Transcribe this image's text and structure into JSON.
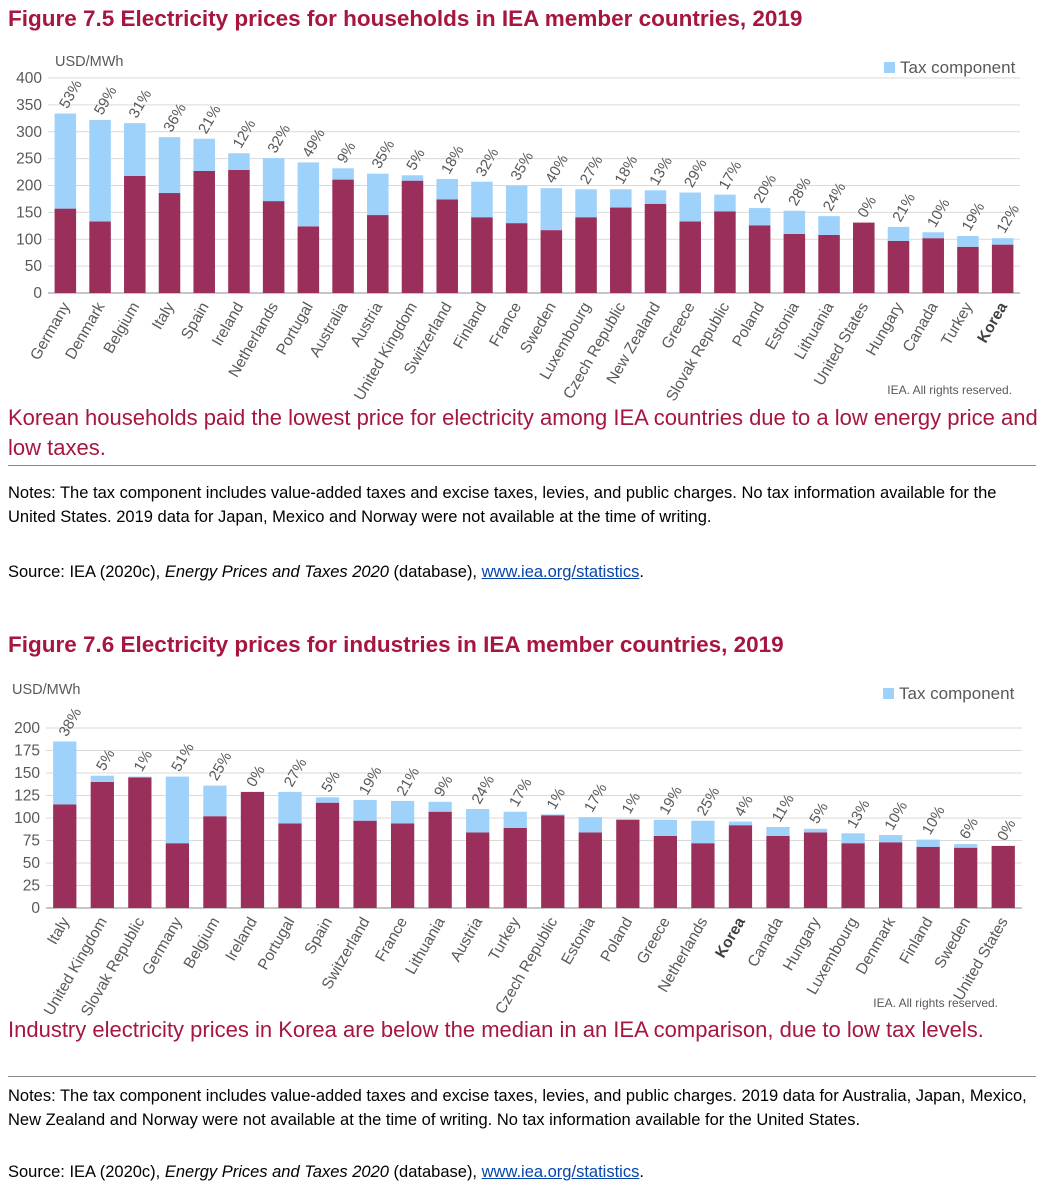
{
  "fig1": {
    "title": "Figure 7.5 Electricity prices for households in IEA member countries, 2019",
    "caption": "Korean households paid the lowest price for electricity among IEA countries due to a low energy price and low taxes.",
    "notes": "Notes: The tax component includes value-added taxes and excise taxes, levies, and public charges. No tax information available for the United States. 2019 data for Japan, Mexico and Norway were not available at the time of writing.",
    "source_prefix": "Source: IEA (2020c), ",
    "source_italic": "Energy Prices and Taxes 2020",
    "source_middle": " (database), ",
    "source_link": "www.iea.org/statistics",
    "source_end": "."
  },
  "fig2": {
    "title": "Figure 7.6 Electricity prices for industries in IEA member countries, 2019",
    "caption": "Industry electricity prices in Korea are below the median in an IEA comparison, due to low tax levels.",
    "notes": "Notes: The tax component includes value-added taxes and excise taxes, levies, and public charges. 2019 data for Australia, Japan, Mexico, New Zealand and Norway were not available at the time of writing. No tax information available for the United States.",
    "source_prefix": "Source: IEA (2020c), ",
    "source_italic": "Energy Prices and Taxes 2020",
    "source_middle": " (database), ",
    "source_link": "www.iea.org/statistics",
    "source_end": "."
  },
  "colors": {
    "energy": "#9b2f5c",
    "tax": "#9fd2fb",
    "title": "#a6163e",
    "axis_text": "#595959",
    "grid": "#d9d9d9"
  },
  "chart_data": [
    {
      "type": "bar",
      "stacked": true,
      "unit_label": "USD/MWh",
      "legend": "Tax component",
      "legend_position": "top-right",
      "credit": "IEA. All rights reserved.",
      "ylim": [
        0,
        400
      ],
      "yticks": [
        0,
        50,
        100,
        150,
        200,
        250,
        300,
        350,
        400
      ],
      "grid": true,
      "highlight": "Korea",
      "categories": [
        "Germany",
        "Denmark",
        "Belgium",
        "Italy",
        "Spain",
        "Ireland",
        "Netherlands",
        "Portugal",
        "Australia",
        "Austria",
        "United Kingdom",
        "Switzerland",
        "Finland",
        "France",
        "Sweden",
        "Luxembourg",
        "Czech Republic",
        "New Zealand",
        "Greece",
        "Slovak Republic",
        "Poland",
        "Estonia",
        "Lithuania",
        "United States",
        "Hungary",
        "Canada",
        "Turkey",
        "Korea"
      ],
      "series": [
        {
          "name": "",
          "values": [
            157,
            133,
            218,
            186,
            227,
            229,
            171,
            124,
            211,
            145,
            209,
            174,
            141,
            130,
            117,
            141,
            159,
            166,
            133,
            152,
            126,
            110,
            108,
            131,
            97,
            102,
            86,
            90
          ]
        },
        {
          "name": "Tax component",
          "values": [
            177,
            189,
            98,
            104,
            60,
            31,
            80,
            119,
            21,
            77,
            10,
            38,
            66,
            70,
            78,
            52,
            34,
            25,
            54,
            31,
            32,
            43,
            35,
            0,
            26,
            11,
            20,
            12
          ]
        }
      ],
      "tax_share_labels": [
        "53%",
        "59%",
        "31%",
        "36%",
        "21%",
        "12%",
        "32%",
        "49%",
        "9%",
        "35%",
        "5%",
        "18%",
        "32%",
        "35%",
        "40%",
        "27%",
        "18%",
        "13%",
        "29%",
        "17%",
        "20%",
        "28%",
        "24%",
        "0%",
        "21%",
        "10%",
        "19%",
        "12%"
      ]
    },
    {
      "type": "bar",
      "stacked": true,
      "unit_label": "USD/MWh",
      "legend": "Tax component",
      "legend_position": "top-right",
      "credit": "IEA. All rights reserved.",
      "ylim": [
        0,
        200
      ],
      "yticks": [
        0,
        25,
        50,
        75,
        100,
        125,
        150,
        175,
        200
      ],
      "grid": true,
      "highlight": "Korea",
      "categories": [
        "Italy",
        "United Kingdom",
        "Slovak Republic",
        "Germany",
        "Belgium",
        "Ireland",
        "Portugal",
        "Spain",
        "Switzerland",
        "France",
        "Lithuania",
        "Austria",
        "Turkey",
        "Czech Republic",
        "Estonia",
        "Poland",
        "Greece",
        "Netherlands",
        "Korea",
        "Canada",
        "Hungary",
        "Luxembourg",
        "Denmark",
        "Finland",
        "Sweden",
        "United States"
      ],
      "series": [
        {
          "name": "",
          "values": [
            115,
            140,
            145,
            72,
            102,
            129,
            94,
            117,
            97,
            94,
            107,
            84,
            89,
            103,
            84,
            98,
            80,
            72,
            92,
            80,
            84,
            72,
            73,
            68,
            67,
            69
          ]
        },
        {
          "name": "Tax component",
          "values": [
            70,
            7,
            1,
            74,
            34,
            0,
            35,
            6,
            23,
            25,
            11,
            26,
            18,
            1,
            17,
            1,
            18,
            25,
            4,
            10,
            4,
            11,
            8,
            8,
            4,
            0
          ]
        }
      ],
      "tax_share_labels": [
        "38%",
        "5%",
        "1%",
        "51%",
        "25%",
        "0%",
        "27%",
        "5%",
        "19%",
        "21%",
        "9%",
        "24%",
        "17%",
        "1%",
        "17%",
        "1%",
        "19%",
        "25%",
        "4%",
        "11%",
        "5%",
        "13%",
        "10%",
        "10%",
        "6%",
        "0%"
      ]
    }
  ]
}
